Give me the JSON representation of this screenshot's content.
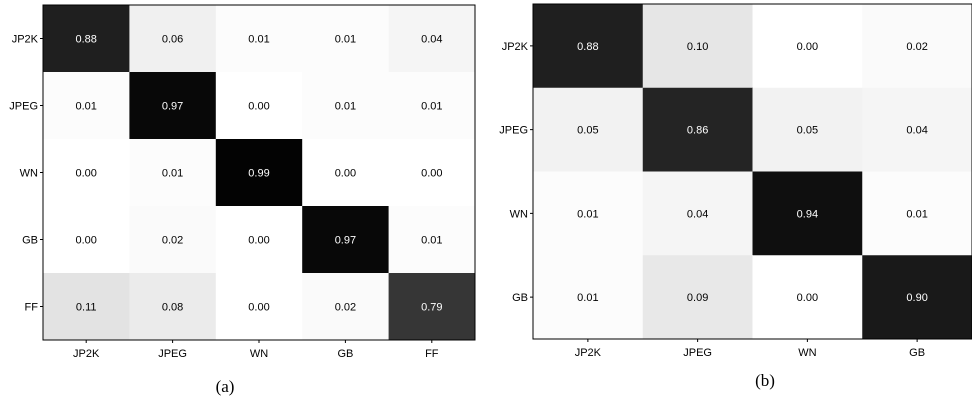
{
  "chart_data": [
    {
      "type": "heatmap",
      "caption": "(a)",
      "row_labels": [
        "JP2K",
        "JPEG",
        "WN",
        "GB",
        "FF"
      ],
      "col_labels": [
        "JP2K",
        "JPEG",
        "WN",
        "GB",
        "FF"
      ],
      "values": [
        [
          0.88,
          0.06,
          0.01,
          0.01,
          0.04
        ],
        [
          0.01,
          0.97,
          0.0,
          0.01,
          0.01
        ],
        [
          0.0,
          0.01,
          0.99,
          0.0,
          0.0
        ],
        [
          0.0,
          0.02,
          0.0,
          0.97,
          0.01
        ],
        [
          0.11,
          0.08,
          0.0,
          0.02,
          0.79
        ]
      ],
      "colormap": "gray_r",
      "value_format": "0.00"
    },
    {
      "type": "heatmap",
      "caption": "(b)",
      "row_labels": [
        "JP2K",
        "JPEG",
        "WN",
        "GB"
      ],
      "col_labels": [
        "JP2K",
        "JPEG",
        "WN",
        "GB"
      ],
      "values": [
        [
          0.88,
          0.1,
          0.0,
          0.02
        ],
        [
          0.05,
          0.86,
          0.05,
          0.04
        ],
        [
          0.01,
          0.04,
          0.94,
          0.01
        ],
        [
          0.01,
          0.09,
          0.0,
          0.9
        ]
      ],
      "colormap": "gray_r",
      "value_format": "0.00"
    }
  ]
}
